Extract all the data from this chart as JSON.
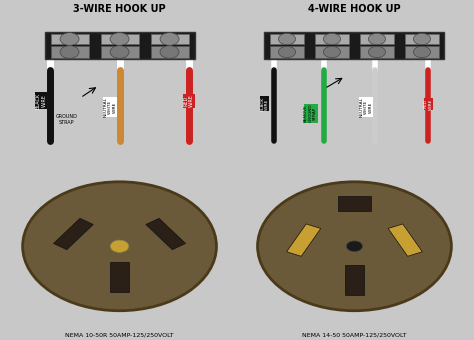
{
  "title_3wire": "3-WIRE HOOK UP",
  "title_4wire": "4-WIRE HOOK UP",
  "label_nema1": "NEMA 10-50R 50AMP-125/250VOLT",
  "label_nema2": "NEMA 14-50 50AMP-125/250VOLT",
  "bg_color": "#c8c8c8",
  "wire_colors_3": [
    "#111111",
    "#cc8833",
    "#cc2222"
  ],
  "wire_colors_4": [
    "#111111",
    "#22aa44",
    "#cccccc",
    "#cc2222"
  ],
  "terminal_block_color": "#1a1a1a",
  "outlet_bg": "#6b5a3a",
  "outlet_dark": "#2a2018",
  "outlet_gold": "#c8a032"
}
